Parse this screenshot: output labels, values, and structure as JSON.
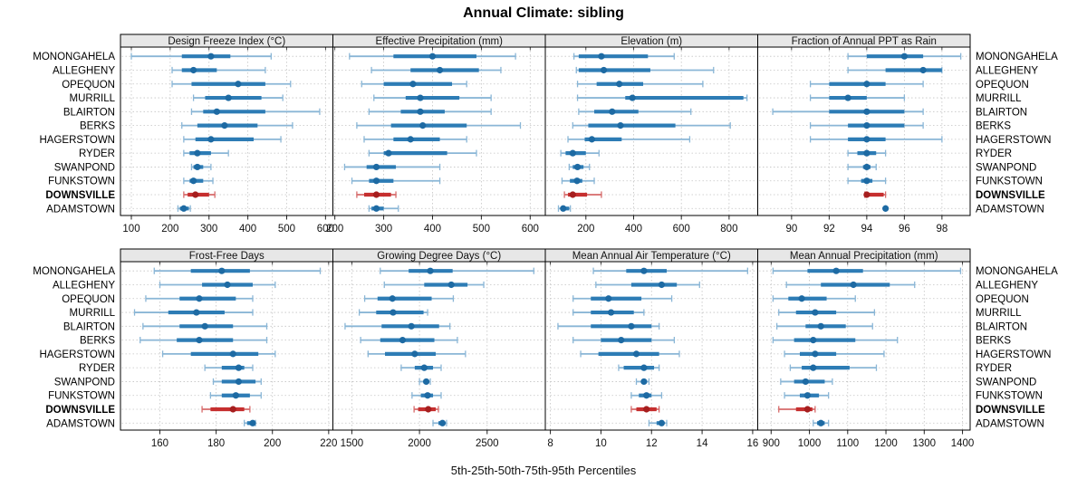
{
  "title": "Annual Climate: sibling",
  "caption": "5th-25th-50th-75th-95th Percentiles",
  "colors": {
    "blue_main": "#2d7cb5",
    "blue_thin": "#8ab6d6",
    "blue_dot": "#1d6aa3",
    "red_main": "#c62f2f",
    "red_thin": "#d66a6a",
    "red_dot": "#a61e1e",
    "strip_bg": "#e7e7e7",
    "panel_border": "#000000",
    "grid": "#c3c3c3",
    "tick": "#222222"
  },
  "chart_data": {
    "type": "percentile_dotplot_trellis",
    "percentiles": [
      5,
      25,
      50,
      75,
      95
    ],
    "legend_note": "thin line = 5th-95th, thick bar = 25th-75th, dot = median",
    "sites": [
      "MONONGAHELA",
      "ALLEGHENY",
      "OPEQUON",
      "MURRILL",
      "BLAIRTON",
      "BERKS",
      "HAGERSTOWN",
      "RYDER",
      "SWANPOND",
      "FUNKSTOWN",
      "DOWNSVILLE",
      "ADAMSTOWN"
    ],
    "highlight_site": "DOWNSVILLE",
    "panels": [
      {
        "title": "Design Freeze Index (°C)",
        "row": 0,
        "col": 0,
        "xlim": [
          72,
          619
        ],
        "ticks": [
          100,
          200,
          300,
          400,
          500,
          600
        ],
        "values": [
          [
            100,
            230,
            305,
            355,
            460
          ],
          [
            205,
            230,
            260,
            320,
            445
          ],
          [
            205,
            255,
            375,
            445,
            510
          ],
          [
            260,
            290,
            350,
            435,
            490
          ],
          [
            255,
            285,
            320,
            445,
            585
          ],
          [
            230,
            270,
            340,
            425,
            515
          ],
          [
            235,
            265,
            305,
            415,
            485
          ],
          [
            235,
            250,
            270,
            305,
            350
          ],
          [
            255,
            260,
            270,
            285,
            305
          ],
          [
            235,
            250,
            260,
            285,
            310
          ],
          [
            235,
            245,
            265,
            300,
            315
          ],
          [
            220,
            225,
            235,
            248,
            252
          ]
        ]
      },
      {
        "title": "Effective Precipitation (mm)",
        "row": 0,
        "col": 1,
        "xlim": [
          196,
          631
        ],
        "ticks": [
          200,
          300,
          400,
          500,
          600
        ],
        "values": [
          [
            230,
            320,
            400,
            490,
            570
          ],
          [
            275,
            355,
            415,
            495,
            540
          ],
          [
            255,
            300,
            360,
            440,
            470
          ],
          [
            280,
            345,
            375,
            455,
            520
          ],
          [
            270,
            335,
            375,
            425,
            520
          ],
          [
            245,
            315,
            380,
            470,
            580
          ],
          [
            260,
            320,
            355,
            415,
            470
          ],
          [
            270,
            300,
            310,
            430,
            490
          ],
          [
            220,
            265,
            285,
            325,
            415
          ],
          [
            235,
            270,
            285,
            320,
            415
          ],
          [
            245,
            260,
            285,
            315,
            325
          ],
          [
            270,
            275,
            285,
            300,
            330
          ]
        ]
      },
      {
        "title": "Elevation (m)",
        "row": 0,
        "col": 2,
        "xlim": [
          30,
          920
        ],
        "ticks": [
          200,
          400,
          600,
          800
        ],
        "values": [
          [
            150,
            170,
            265,
            460,
            570
          ],
          [
            160,
            170,
            275,
            470,
            735
          ],
          [
            165,
            245,
            340,
            440,
            690
          ],
          [
            165,
            365,
            395,
            860,
            875
          ],
          [
            170,
            235,
            310,
            420,
            640
          ],
          [
            145,
            210,
            345,
            575,
            805
          ],
          [
            125,
            195,
            225,
            350,
            635
          ],
          [
            95,
            115,
            145,
            200,
            255
          ],
          [
            130,
            145,
            165,
            190,
            215
          ],
          [
            100,
            133,
            163,
            185,
            235
          ],
          [
            110,
            125,
            145,
            205,
            265
          ],
          [
            85,
            95,
            105,
            130,
            135
          ]
        ]
      },
      {
        "title": "Fraction of Annual PPT as Rain",
        "row": 0,
        "col": 3,
        "xlim": [
          88.2,
          99.5
        ],
        "ticks": [
          90,
          92,
          94,
          96,
          98
        ],
        "values": [
          [
            93,
            94,
            96,
            97,
            99
          ],
          [
            93,
            95,
            97,
            98,
            98
          ],
          [
            91,
            92,
            94,
            95,
            97
          ],
          [
            91,
            92,
            93,
            94,
            96
          ],
          [
            89,
            92,
            94,
            96,
            97
          ],
          [
            91,
            93,
            94,
            96,
            97
          ],
          [
            91,
            93,
            94,
            95,
            98
          ],
          [
            93,
            93.5,
            94,
            94.5,
            95
          ],
          [
            93,
            93.8,
            94,
            94.2,
            94.5
          ],
          [
            93,
            93.7,
            94,
            94.3,
            95
          ],
          [
            93.9,
            94,
            94,
            94.9,
            95
          ],
          [
            95,
            95,
            95,
            95,
            95
          ]
        ]
      },
      {
        "title": "Frost-Free Days",
        "row": 1,
        "col": 0,
        "xlim": [
          146,
          221.5
        ],
        "ticks": [
          160,
          180,
          200,
          220
        ],
        "values": [
          [
            158,
            171,
            182,
            192,
            217
          ],
          [
            160,
            175,
            184,
            193,
            201
          ],
          [
            155,
            167,
            174,
            187,
            193
          ],
          [
            151,
            163,
            173,
            183,
            193
          ],
          [
            154,
            167,
            176,
            186,
            198
          ],
          [
            153,
            166,
            174,
            186,
            198
          ],
          [
            161,
            171,
            186,
            195,
            201
          ],
          [
            176,
            182,
            188,
            190,
            193
          ],
          [
            179,
            182,
            188,
            194,
            196
          ],
          [
            178,
            182,
            187,
            192,
            196
          ],
          [
            175,
            178,
            186,
            190,
            192
          ],
          [
            190,
            191,
            193,
            193.5,
            194
          ]
        ]
      },
      {
        "title": "Growing Degree Days (°C)",
        "row": 1,
        "col": 1,
        "xlim": [
          1360,
          2930
        ],
        "ticks": [
          1500,
          2000,
          2500
        ],
        "values": [
          [
            1710,
            1920,
            2080,
            2245,
            2845
          ],
          [
            1740,
            2035,
            2235,
            2355,
            2475
          ],
          [
            1595,
            1690,
            1800,
            2090,
            2250
          ],
          [
            1555,
            1680,
            1805,
            2030,
            2060
          ],
          [
            1450,
            1720,
            1940,
            2145,
            2225
          ],
          [
            1565,
            1710,
            1875,
            2110,
            2280
          ],
          [
            1620,
            1745,
            1965,
            2120,
            2340
          ],
          [
            1865,
            1965,
            2035,
            2100,
            2160
          ],
          [
            2000,
            2030,
            2050,
            2070,
            2080
          ],
          [
            1945,
            2010,
            2060,
            2100,
            2160
          ],
          [
            1960,
            1990,
            2065,
            2120,
            2140
          ],
          [
            2100,
            2140,
            2170,
            2190,
            2200
          ]
        ]
      },
      {
        "title": "Mean Annual Air Temperature (°C)",
        "row": 1,
        "col": 2,
        "xlim": [
          7.8,
          16.2
        ],
        "ticks": [
          8,
          10,
          12,
          14,
          16
        ],
        "values": [
          [
            9.7,
            11.0,
            11.7,
            12.6,
            15.8
          ],
          [
            9.8,
            11.2,
            12.4,
            13.0,
            13.9
          ],
          [
            8.9,
            9.6,
            10.3,
            11.6,
            12.8
          ],
          [
            8.9,
            9.6,
            10.4,
            11.3,
            11.7
          ],
          [
            8.3,
            9.6,
            11.2,
            12.0,
            12.3
          ],
          [
            8.9,
            10.0,
            10.8,
            12.0,
            12.9
          ],
          [
            9.2,
            9.9,
            11.4,
            12.3,
            13.1
          ],
          [
            10.7,
            10.9,
            11.7,
            12.1,
            12.3
          ],
          [
            11.4,
            11.6,
            11.7,
            11.8,
            11.9
          ],
          [
            11.2,
            11.5,
            11.8,
            12.0,
            12.4
          ],
          [
            11.2,
            11.4,
            11.8,
            12.2,
            12.3
          ],
          [
            11.9,
            12.2,
            12.4,
            12.5,
            12.6
          ]
        ]
      },
      {
        "title": "Mean Annual Precipitation (mm)",
        "row": 1,
        "col": 3,
        "xlim": [
          865,
          1420
        ],
        "ticks": [
          900,
          1000,
          1100,
          1200,
          1300,
          1400
        ],
        "values": [
          [
            905,
            995,
            1070,
            1140,
            1395
          ],
          [
            940,
            1030,
            1115,
            1210,
            1275
          ],
          [
            905,
            945,
            980,
            1045,
            1120
          ],
          [
            920,
            965,
            1015,
            1070,
            1170
          ],
          [
            915,
            990,
            1030,
            1095,
            1165
          ],
          [
            905,
            960,
            1010,
            1120,
            1230
          ],
          [
            935,
            975,
            1015,
            1070,
            1195
          ],
          [
            950,
            980,
            1010,
            1105,
            1175
          ],
          [
            925,
            960,
            990,
            1040,
            1060
          ],
          [
            935,
            975,
            995,
            1025,
            1050
          ],
          [
            920,
            965,
            995,
            1008,
            1015
          ],
          [
            1010,
            1020,
            1030,
            1040,
            1050
          ]
        ]
      }
    ]
  }
}
